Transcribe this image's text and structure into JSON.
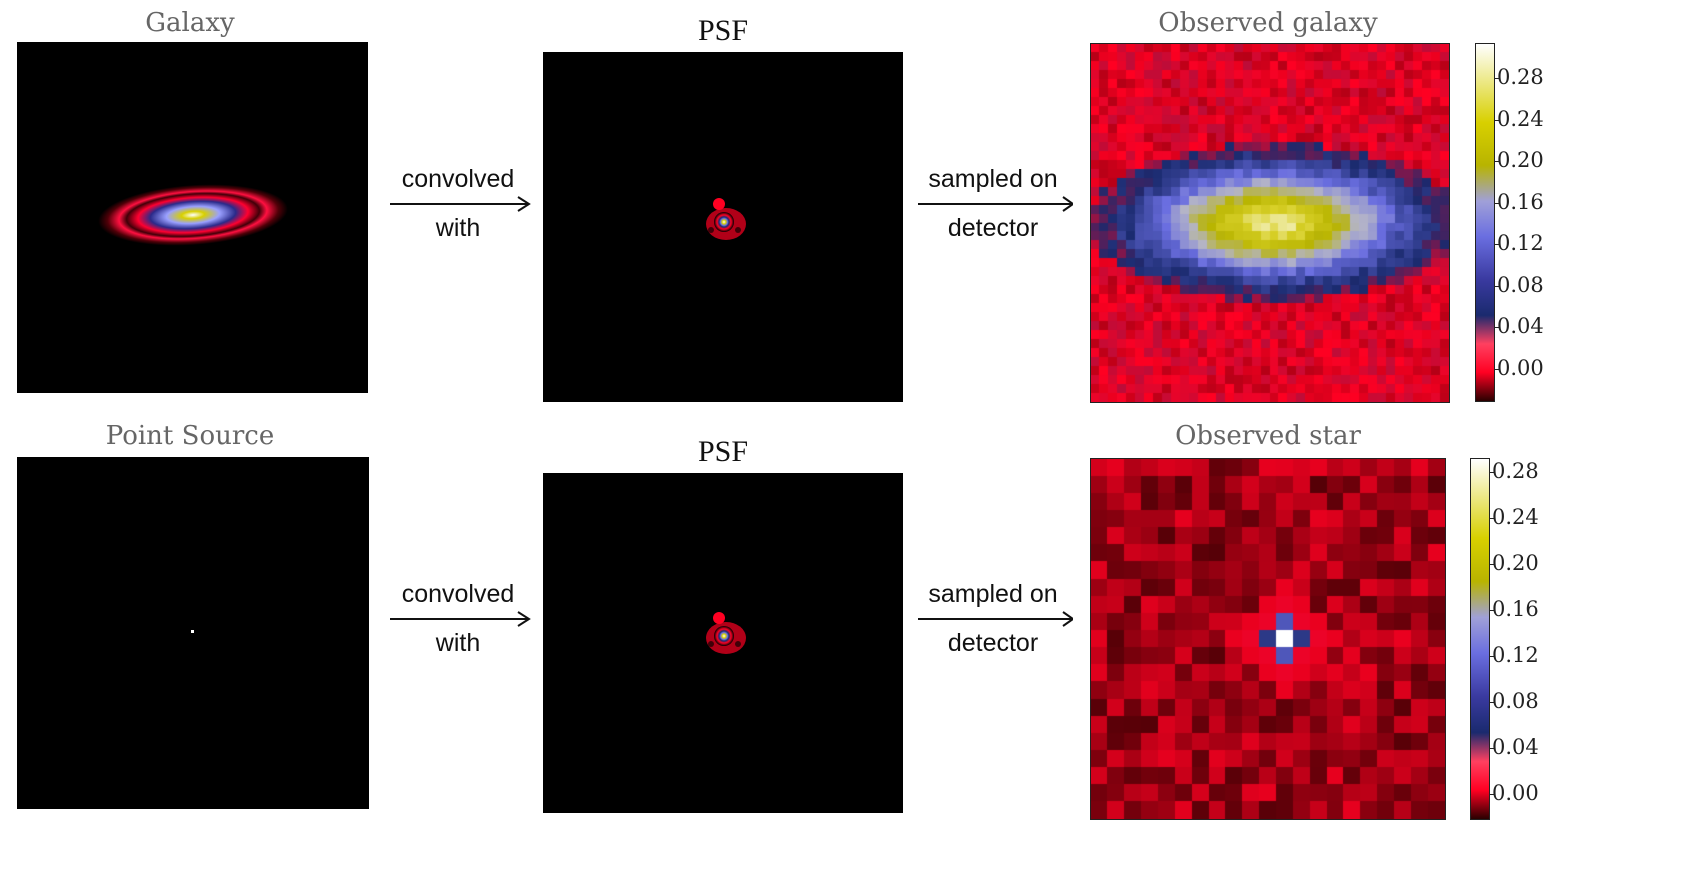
{
  "rows": [
    {
      "source_title": "Galaxy",
      "psf_title": "PSF",
      "observed_title": "Observed galaxy",
      "arrow1": {
        "top": "convolved",
        "bottom": "with"
      },
      "arrow2": {
        "top": "sampled on",
        "bottom": "detector"
      },
      "colorbar_ticks": [
        "0.28",
        "0.24",
        "0.20",
        "0.16",
        "0.12",
        "0.08",
        "0.04",
        "0.00"
      ]
    },
    {
      "source_title": "Point Source",
      "psf_title": "PSF",
      "observed_title": "Observed star",
      "arrow1": {
        "top": "convolved",
        "bottom": "with"
      },
      "arrow2": {
        "top": "sampled on",
        "bottom": "detector"
      },
      "colorbar_ticks": [
        "0.28",
        "0.24",
        "0.20",
        "0.16",
        "0.12",
        "0.08",
        "0.04",
        "0.00"
      ]
    }
  ],
  "colormap": [
    "#2a0000",
    "#ff0022",
    "#1a2a6e",
    "#6a6ee0",
    "#c8c8c8",
    "#b8b400",
    "#ffffff"
  ]
}
